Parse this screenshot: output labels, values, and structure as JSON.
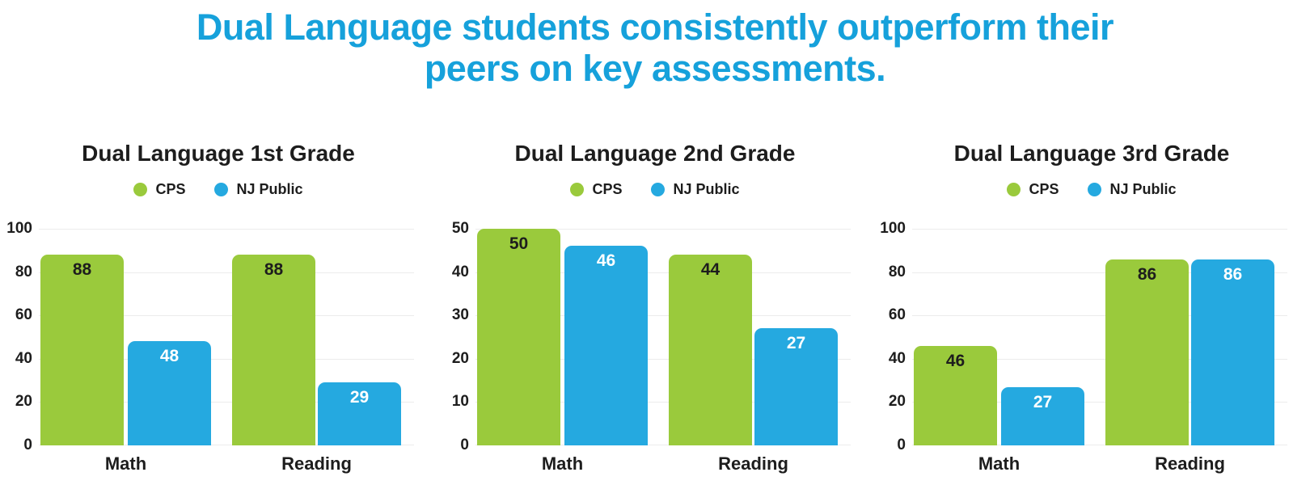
{
  "page": {
    "title_line1": "Dual Language students consistently outperform their",
    "title_line2": "peers on key assessments.",
    "title_color": "#16A1DB"
  },
  "colors": {
    "cps_green": "#9ACA3C",
    "nj_public_blue": "#25A9E0",
    "text_dark": "#1D1D1D",
    "gridline": "#ECECEC",
    "bar_label_on_green": "#1D1D1D",
    "bar_label_on_blue": "#FFFFFF"
  },
  "chart_data": [
    {
      "type": "bar",
      "title": "Dual Language 1st Grade",
      "categories": [
        "Math",
        "Reading"
      ],
      "series": [
        {
          "name": "CPS",
          "color": "#9ACA3C",
          "label_color": "#1D1D1D",
          "values": [
            88,
            88
          ]
        },
        {
          "name": "NJ Public",
          "color": "#25A9E0",
          "label_color": "#FFFFFF",
          "values": [
            48,
            29
          ]
        }
      ],
      "ylim": [
        0,
        100
      ],
      "yticks": [
        0,
        20,
        40,
        60,
        80,
        100
      ],
      "grid": true,
      "legend_position": "top"
    },
    {
      "type": "bar",
      "title": "Dual Language 2nd Grade",
      "categories": [
        "Math",
        "Reading"
      ],
      "series": [
        {
          "name": "CPS",
          "color": "#9ACA3C",
          "label_color": "#1D1D1D",
          "values": [
            50,
            44
          ]
        },
        {
          "name": "NJ Public",
          "color": "#25A9E0",
          "label_color": "#FFFFFF",
          "values": [
            46,
            27
          ]
        }
      ],
      "ylim": [
        0,
        50
      ],
      "yticks": [
        0,
        10,
        20,
        30,
        40,
        50
      ],
      "grid": true,
      "legend_position": "top"
    },
    {
      "type": "bar",
      "title": "Dual Language 3rd Grade",
      "categories": [
        "Math",
        "Reading"
      ],
      "series": [
        {
          "name": "CPS",
          "color": "#9ACA3C",
          "label_color": "#1D1D1D",
          "values": [
            46,
            86
          ]
        },
        {
          "name": "NJ Public",
          "color": "#25A9E0",
          "label_color": "#FFFFFF",
          "values": [
            27,
            86
          ]
        }
      ],
      "ylim": [
        0,
        100
      ],
      "yticks": [
        0,
        20,
        40,
        60,
        80,
        100
      ],
      "grid": true,
      "legend_position": "top"
    }
  ]
}
